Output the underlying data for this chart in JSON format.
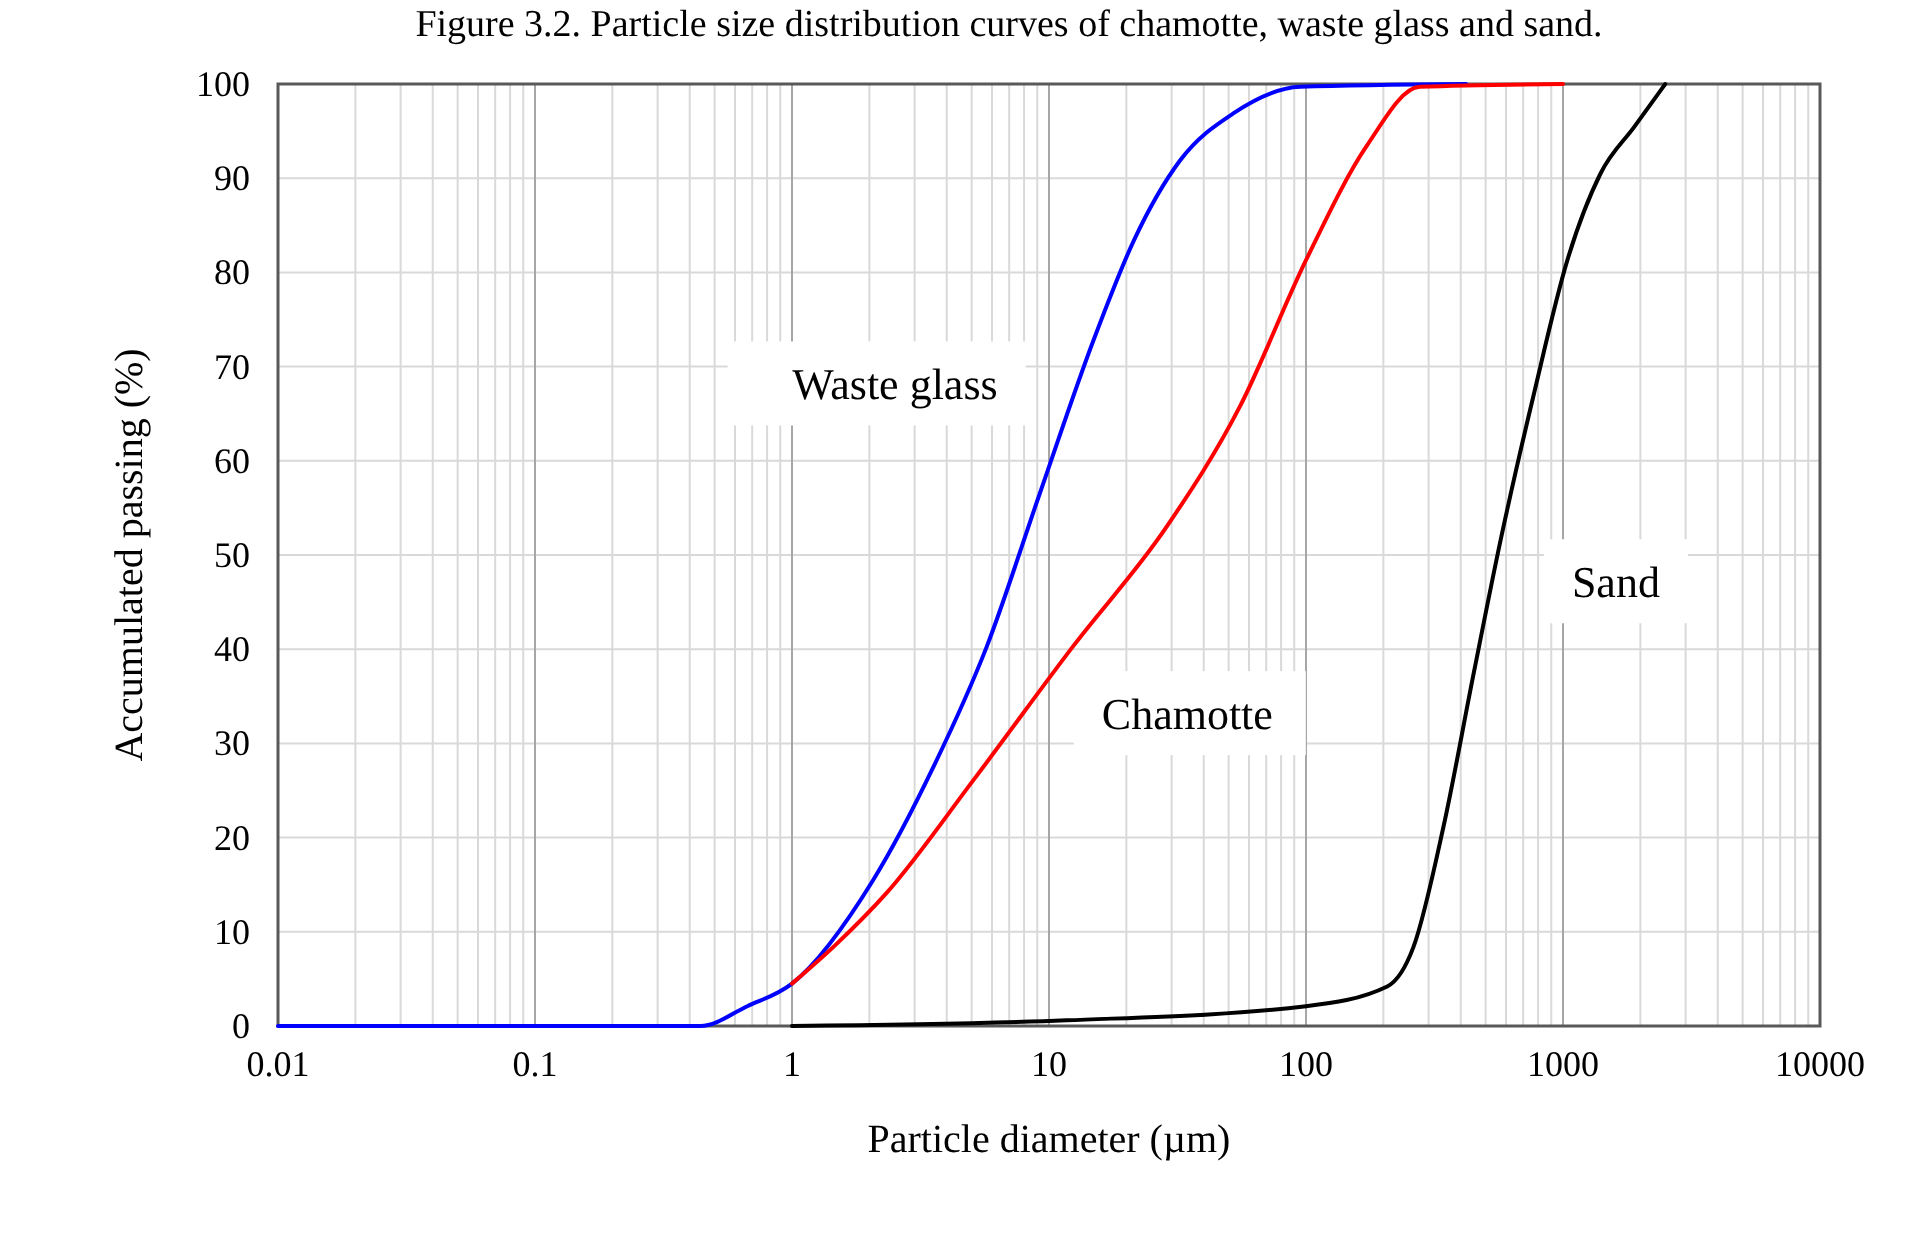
{
  "chart_data": {
    "type": "line",
    "title": "Figure 3.2. Particle size distribution curves of chamotte, waste glass and sand.",
    "xlabel": "Particle diameter (µm)",
    "ylabel": "Accumulated passing (%)",
    "log": "x",
    "xlim": [
      0.01,
      10000
    ],
    "xticks": [
      0.01,
      0.1,
      1,
      10,
      100,
      1000,
      10000
    ],
    "ylim": [
      0,
      100
    ],
    "yticks": [
      0,
      10,
      20,
      30,
      40,
      50,
      60,
      70,
      80,
      90,
      100
    ],
    "grid": true,
    "marker": "none",
    "line_style": "solid",
    "series": [
      {
        "name": "Waste glass",
        "color": "#0000ff",
        "x": [
          0.01,
          0.44,
          0.67,
          1,
          2.07,
          3.55,
          5.73,
          9.2,
          14.9,
          21.4,
          32.4,
          52.3,
          95,
          420
        ],
        "values": [
          0,
          0,
          2.1,
          4.5,
          15.5,
          27.5,
          40.3,
          56.5,
          72.8,
          83.4,
          91.9,
          96.9,
          99.7,
          100
        ]
      },
      {
        "name": "Chamotte",
        "color": "#ff0000",
        "x": [
          1,
          1.45,
          2.33,
          5.08,
          12.4,
          28.7,
          55.4,
          100,
          172,
          277,
          1000
        ],
        "values": [
          4.5,
          8.4,
          14.1,
          26.1,
          40.3,
          53,
          65.8,
          81.3,
          93.4,
          99.7,
          100
        ]
      },
      {
        "name": "Sand",
        "color": "#000000",
        "x": [
          1,
          11.7,
          100,
          207,
          262,
          343,
          449,
          572,
          772,
          1040,
          1400,
          1900,
          2500
        ],
        "values": [
          0,
          0.6,
          2.1,
          4.2,
          8.4,
          21.2,
          37.4,
          51.6,
          67.2,
          81.3,
          90.5,
          95.5,
          100
        ]
      }
    ]
  }
}
